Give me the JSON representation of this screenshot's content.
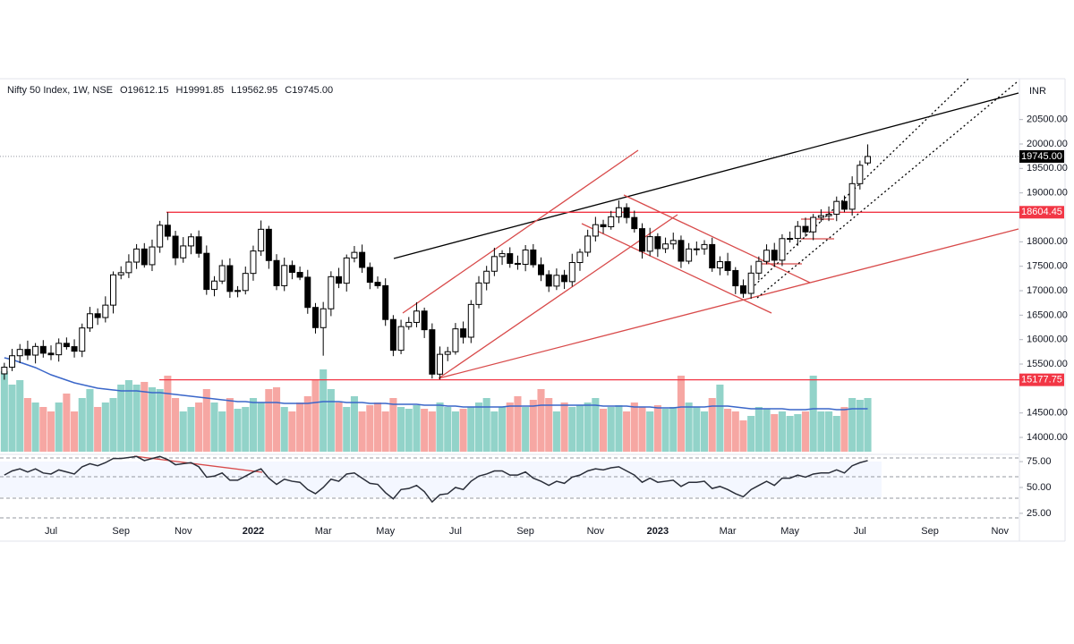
{
  "chart_data": {
    "type": "candlestick",
    "title": "Nifty 50 Index, 1W, NSE",
    "ohlc_legend": [
      "O19612.15",
      "H19991.85",
      "L19562.95",
      "C19745.00"
    ],
    "currency": "INR",
    "categories": [
      null,
      null,
      null,
      null,
      null,
      null,
      "Jul",
      null,
      null,
      null,
      null,
      null,
      null,
      null,
      null,
      "Sep",
      null,
      null,
      null,
      null,
      null,
      null,
      null,
      "Nov",
      null,
      null,
      null,
      null,
      null,
      null,
      null,
      null,
      "2022",
      null,
      null,
      null,
      null,
      null,
      null,
      null,
      null,
      "Mar",
      null,
      null,
      null,
      null,
      null,
      null,
      null,
      "May",
      null,
      null,
      null,
      null,
      null,
      null,
      null,
      null,
      "Jul",
      null,
      null,
      null,
      null,
      null,
      null,
      null,
      null,
      "Sep",
      null,
      null,
      null,
      null,
      null,
      null,
      null,
      null,
      "Nov",
      null,
      null,
      null,
      null,
      null,
      null,
      null,
      "2023",
      null,
      null,
      null,
      null,
      null,
      null,
      null,
      null,
      "Mar",
      null,
      null,
      null,
      null,
      null,
      null,
      null,
      "May",
      null,
      null,
      null,
      null,
      null,
      null,
      null,
      null,
      "Jul",
      null,
      null,
      null,
      null,
      null,
      null,
      null,
      null,
      "Sep",
      null,
      null,
      null,
      null,
      null,
      null,
      null,
      null,
      "Nov",
      null,
      null
    ],
    "open": [
      15300,
      15436,
      15670,
      15799,
      15683,
      15860,
      15722,
      15690,
      15924,
      15856,
      15763,
      16238,
      16529,
      16451,
      16705,
      17324,
      17369,
      17585,
      17853,
      17532,
      17895,
      18339,
      18115,
      17672,
      17916,
      18102,
      17765,
      17026,
      17197,
      17512,
      16985,
      17004,
      17354,
      17812,
      18256,
      17617,
      17102,
      17516,
      17375,
      17276,
      16658,
      16245,
      16630,
      17287,
      17153,
      17670,
      17784,
      17476,
      17172,
      17103,
      16411,
      15782,
      16266,
      16352,
      16584,
      16202,
      15294,
      15699,
      15752,
      16220,
      16049,
      16719,
      17158,
      17398,
      17698,
      17758,
      17559,
      17539,
      17833,
      17531,
      17327,
      17094,
      17315,
      17186,
      17576,
      17787,
      18117,
      18350,
      18308,
      18512,
      18697,
      18497,
      18269,
      17807,
      18105,
      17860,
      17956,
      18028,
      17604,
      17854,
      17856,
      17944,
      17466,
      17594,
      17413,
      17100,
      16945,
      17360,
      17600,
      17828,
      17624,
      18065,
      18069,
      18315,
      18203,
      18499,
      18534,
      18563,
      18826,
      18666,
      19189,
      19612.15,
      null,
      null,
      null,
      null,
      null,
      null,
      null,
      null,
      null,
      null,
      null,
      null,
      null,
      null,
      null,
      null,
      null,
      null,
      null
    ],
    "high": [
      15526,
      15810,
      15909,
      15979,
      15930,
      15990,
      15882,
      16024,
      16044,
      16006,
      16328,
      16669,
      16639,
      16885,
      17394,
      17499,
      17745,
      17953,
      17973,
      18045,
      18429,
      18604.45,
      18225,
      18096,
      18172,
      18232,
      17925,
      17297,
      17632,
      17662,
      17094,
      17494,
      17922,
      18436,
      18326,
      17747,
      17676,
      17616,
      17495,
      17426,
      16748,
      16770,
      17397,
      17467,
      17740,
      17914,
      17944,
      17576,
      17292,
      17253,
      16501,
      16406,
      16462,
      16764,
      16654,
      16332,
      15859,
      15852,
      16340,
      16370,
      16809,
      17298,
      17508,
      17878,
      17828,
      17888,
      17719,
      17933,
      17953,
      17681,
      17417,
      17455,
      17425,
      17756,
      17857,
      18247,
      18510,
      18450,
      18632,
      18847,
      18787,
      18637,
      18379,
      18285,
      18175,
      18086,
      18188,
      18128,
      17974,
      18006,
      18034,
      18084,
      17704,
      17774,
      17483,
      17230,
      17520,
      17700,
      17948,
      17978,
      18155,
      18209,
      18425,
      18495,
      18569,
      18664,
      18723,
      18926,
      18946,
      19339,
      19660,
      19991.85,
      null,
      null,
      null,
      null,
      null,
      null,
      null,
      null,
      null,
      null,
      null,
      null,
      null,
      null,
      null,
      null,
      null,
      null,
      null
    ],
    "low": [
      15180,
      15356,
      15520,
      15583,
      15513,
      15632,
      15580,
      15550,
      15796,
      15633,
      15643,
      16158,
      16301,
      16351,
      16535,
      17234,
      17259,
      17445,
      17472,
      17402,
      17775,
      18035,
      17522,
      17572,
      17746,
      17675,
      16916,
      16886,
      17137,
      16855,
      16865,
      16924,
      17204,
      17712,
      17447,
      17012,
      16992,
      17235,
      17216,
      16528,
      16125,
      15671,
      16480,
      17053,
      16983,
      17580,
      17366,
      17032,
      17043,
      16281,
      15662,
      15702,
      16202,
      16252,
      16032,
      15204,
      15184,
      15559,
      15692,
      15919,
      15929,
      16639,
      17008,
      17298,
      17528,
      17469,
      17429,
      17399,
      17471,
      17197,
      16974,
      17014,
      17036,
      17086,
      17406,
      17697,
      18007,
      18168,
      18248,
      18382,
      18377,
      18189,
      17657,
      17707,
      17690,
      17770,
      17846,
      17464,
      17544,
      17724,
      17736,
      17386,
      17316,
      17313,
      16930,
      16855,
      16835,
      17220,
      17540,
      17494,
      17504,
      17985,
      17919,
      18103,
      18033,
      18409,
      18424,
      18423,
      18606,
      18536,
      19069,
      19562.95,
      null,
      null,
      null,
      null,
      null,
      null,
      null,
      null,
      null,
      null,
      null,
      null,
      null,
      null,
      null,
      null,
      null,
      null,
      null
    ],
    "close": [
      15436,
      15670,
      15799,
      15683,
      15860,
      15722,
      15690,
      15924,
      15856,
      15763,
      16238,
      16529,
      16451,
      16705,
      17324,
      17369,
      17585,
      17853,
      17532,
      17895,
      18339,
      18115,
      17672,
      17916,
      18102,
      17765,
      17026,
      17197,
      17512,
      16985,
      17004,
      17354,
      17812,
      18256,
      17617,
      17102,
      17516,
      17375,
      17276,
      16658,
      16245,
      16630,
      17287,
      17153,
      17670,
      17784,
      17476,
      17172,
      17103,
      16411,
      15782,
      16266,
      16352,
      16584,
      16202,
      15294,
      15699,
      15752,
      16220,
      16049,
      16719,
      17158,
      17398,
      17698,
      17758,
      17559,
      17539,
      17833,
      17531,
      17327,
      17094,
      17315,
      17186,
      17576,
      17787,
      18117,
      18350,
      18308,
      18512,
      18697,
      18497,
      18269,
      17807,
      18105,
      17860,
      17956,
      18028,
      17604,
      17854,
      17856,
      17944,
      17466,
      17594,
      17413,
      17100,
      16945,
      17360,
      17600,
      17828,
      17624,
      18065,
      18069,
      18315,
      18203,
      18499,
      18534,
      18563,
      18826,
      18666,
      19189,
      19565,
      19745,
      null,
      null,
      null,
      null,
      null,
      null,
      null,
      null,
      null,
      null,
      null,
      null,
      null,
      null,
      null,
      null,
      null,
      null,
      null
    ],
    "up_color": "#ffffff",
    "down_color": "#000000",
    "ylim": [
      13708,
      21335
    ],
    "yticks": [
      {
        "value": 14000,
        "label": "14000.00"
      },
      {
        "value": 14500,
        "label": "14500.00"
      },
      {
        "value": 15500,
        "label": "15500.00"
      },
      {
        "value": 16000,
        "label": "16000.00"
      },
      {
        "value": 16500,
        "label": "16500.00"
      },
      {
        "value": 17000,
        "label": "17000.00"
      },
      {
        "value": 17500,
        "label": "17500.00"
      },
      {
        "value": 18000,
        "label": "18000.00"
      },
      {
        "value": 19000,
        "label": "19000.00"
      },
      {
        "value": 19500,
        "label": "19500.00"
      },
      {
        "value": 20000,
        "label": "20000.00"
      },
      {
        "value": 20500,
        "label": "20500.00"
      }
    ],
    "levels": [
      18604.45,
      15177.75
    ],
    "level_color": "#f23645",
    "last_price": {
      "value": 19745,
      "label": "19745.00"
    },
    "volume": {
      "values": [
        90,
        75,
        80,
        60,
        55,
        50,
        45,
        55,
        65,
        45,
        60,
        70,
        50,
        55,
        60,
        75,
        80,
        75,
        78,
        72,
        70,
        85,
        60,
        45,
        50,
        55,
        70,
        55,
        45,
        60,
        48,
        50,
        60,
        55,
        70,
        72,
        50,
        45,
        55,
        62,
        80,
        92,
        70,
        55,
        50,
        62,
        45,
        52,
        55,
        45,
        60,
        50,
        48,
        52,
        48,
        45,
        55,
        50,
        45,
        48,
        50,
        55,
        60,
        45,
        50,
        55,
        62,
        50,
        58,
        70,
        60,
        45,
        55,
        50,
        52,
        55,
        60,
        48,
        50,
        52,
        45,
        55,
        50,
        45,
        52,
        48,
        50,
        85,
        55,
        50,
        45,
        60,
        75,
        48,
        45,
        35,
        40,
        50,
        48,
        42,
        45,
        40,
        42,
        45,
        85,
        45,
        45,
        40,
        50,
        60,
        58,
        60,
        null,
        null,
        null,
        null,
        null,
        null,
        null,
        null,
        null,
        null,
        null,
        null,
        null,
        null,
        null,
        null,
        null,
        null,
        null
      ],
      "ma": [
        105,
        103,
        100,
        97,
        94,
        90,
        86,
        83,
        80,
        77,
        75,
        73,
        71,
        70,
        69,
        68,
        68,
        68,
        67,
        66,
        66,
        65,
        64,
        63,
        62,
        61,
        60,
        59,
        58,
        57,
        56,
        56,
        55,
        55,
        55,
        55,
        54,
        54,
        54,
        54,
        55,
        56,
        56,
        56,
        55,
        55,
        55,
        54,
        54,
        54,
        53,
        53,
        53,
        53,
        52,
        52,
        52,
        51,
        51,
        50,
        50,
        50,
        50,
        50,
        50,
        51,
        51,
        51,
        51,
        52,
        52,
        52,
        52,
        52,
        52,
        52,
        52,
        51,
        51,
        51,
        51,
        50,
        50,
        50,
        49,
        49,
        49,
        50,
        50,
        50,
        50,
        51,
        51,
        51,
        50,
        49,
        48,
        48,
        48,
        48,
        48,
        47,
        47,
        47,
        48,
        48,
        48,
        47,
        47,
        48,
        48,
        48,
        null,
        null,
        null,
        null,
        null,
        null,
        null,
        null,
        null,
        null,
        null,
        null,
        null,
        null,
        null,
        null,
        null,
        null,
        null
      ],
      "ylim": [
        0,
        170
      ],
      "up_color": "#92d3c9",
      "down_color": "#f6a7a3",
      "ma_color": "#3a66c9"
    },
    "rsi": {
      "values": [
        62,
        66,
        68,
        65,
        68,
        64,
        63,
        67,
        65,
        63,
        70,
        73,
        71,
        74,
        78,
        78,
        79,
        80,
        76,
        78,
        80,
        77,
        72,
        73,
        74,
        70,
        60,
        61,
        64,
        57,
        57,
        61,
        65,
        68,
        59,
        53,
        58,
        56,
        55,
        48,
        44,
        50,
        58,
        56,
        63,
        64,
        59,
        54,
        53,
        45,
        39,
        48,
        49,
        52,
        46,
        36,
        43,
        44,
        50,
        48,
        56,
        61,
        63,
        66,
        66,
        62,
        62,
        65,
        59,
        56,
        52,
        56,
        54,
        60,
        62,
        66,
        68,
        67,
        69,
        70,
        66,
        62,
        55,
        59,
        55,
        56,
        57,
        51,
        55,
        55,
        56,
        49,
        51,
        48,
        44,
        41,
        48,
        52,
        56,
        52,
        59,
        59,
        62,
        60,
        63,
        64,
        64,
        67,
        64,
        71,
        74,
        76,
        null,
        null,
        null,
        null,
        null,
        null,
        null,
        null,
        null,
        null,
        null,
        null,
        null,
        null,
        null,
        null,
        null,
        null,
        null
      ],
      "ylim": [
        18,
        82
      ],
      "yticks": [
        {
          "value": 75,
          "label": "75.00"
        },
        {
          "value": 50,
          "label": "50.00"
        },
        {
          "value": 25,
          "label": "25.00"
        }
      ],
      "color": "#2a2e39"
    }
  }
}
